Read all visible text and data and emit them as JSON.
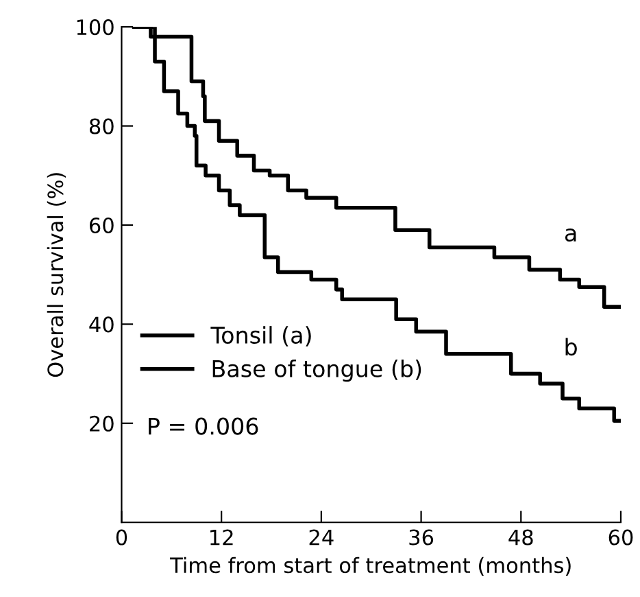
{
  "chart_data": {
    "type": "step",
    "xlabel": "Time from start of treatment (months)",
    "ylabel": "Overall survival (%)",
    "xlim": [
      0,
      60
    ],
    "ylim": [
      0,
      100
    ],
    "xticks": [
      0,
      12,
      24,
      36,
      48,
      60
    ],
    "yticks": [
      20,
      40,
      60,
      80,
      100
    ],
    "grid": false,
    "legend": "left",
    "marker": "none",
    "line_style": "solid",
    "series": [
      {
        "name": "Tonsil (a)",
        "color": "#000000",
        "x": [
          1.5,
          3.5,
          8.4,
          9.8,
          10.0,
          11.7,
          13.9,
          15.9,
          17.8,
          20.0,
          22.2,
          25.8,
          31.9,
          32.9,
          37.0,
          44.8,
          49.0,
          52.7,
          55.0,
          58.0,
          60.0
        ],
        "values": [
          100,
          98,
          89,
          86,
          81,
          77,
          74,
          71,
          70,
          67,
          65.5,
          63.5,
          63.5,
          59,
          55.5,
          53.5,
          51,
          49,
          47.5,
          43.5,
          43.5
        ]
      },
      {
        "name": "Base of tongue (b)",
        "color": "#000000",
        "x": [
          1.5,
          4.0,
          5.1,
          6.8,
          7.9,
          8.8,
          9.0,
          10.1,
          11.7,
          13.0,
          14.2,
          17.2,
          18.8,
          22.8,
          25.8,
          26.5,
          31.9,
          33.0,
          35.4,
          39.0,
          46.8,
          50.3,
          53.0,
          55.0,
          59.2,
          60.0
        ],
        "values": [
          100,
          93,
          87,
          82.5,
          80,
          78,
          72,
          70,
          67,
          64,
          62,
          53.5,
          50.5,
          49,
          47,
          45,
          45,
          41,
          38.5,
          34,
          30,
          28,
          25,
          23,
          20.5,
          20.5
        ]
      }
    ],
    "annotations": [
      "a",
      "b",
      "P = 0.006"
    ]
  }
}
